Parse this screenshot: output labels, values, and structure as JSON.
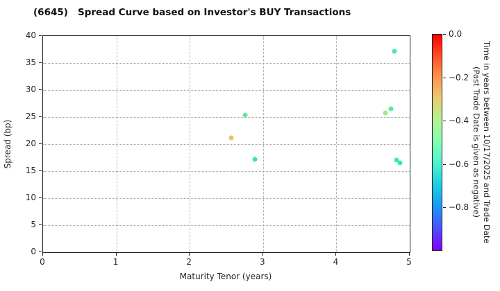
{
  "title": "(6645)   Spread Curve based on Investor's BUY Transactions",
  "chart_data": {
    "type": "scatter",
    "title": "(6645)   Spread Curve based on Investor's BUY Transactions",
    "xlabel": "Maturity Tenor (years)",
    "ylabel": "Spread (bp)",
    "xlim": [
      0,
      5
    ],
    "ylim": [
      0,
      40
    ],
    "x_ticks": [
      0,
      1,
      2,
      3,
      4,
      5
    ],
    "y_ticks": [
      0,
      5,
      10,
      15,
      20,
      25,
      30,
      35,
      40
    ],
    "grid": true,
    "points": [
      {
        "x": 2.57,
        "y": 21.1,
        "time_value": -0.28,
        "color": "#eac36b"
      },
      {
        "x": 2.76,
        "y": 25.4,
        "time_value": -0.5,
        "color": "#68e79c"
      },
      {
        "x": 2.89,
        "y": 17.2,
        "time_value": -0.58,
        "color": "#38dfc9"
      },
      {
        "x": 4.67,
        "y": 25.8,
        "time_value": -0.42,
        "color": "#a3e688"
      },
      {
        "x": 4.74,
        "y": 26.6,
        "time_value": -0.5,
        "color": "#62e79e"
      },
      {
        "x": 4.79,
        "y": 37.2,
        "time_value": -0.51,
        "color": "#55e7a6"
      },
      {
        "x": 4.82,
        "y": 17.0,
        "time_value": -0.55,
        "color": "#46e5b3"
      },
      {
        "x": 4.87,
        "y": 16.5,
        "time_value": -0.57,
        "color": "#3ce2be"
      }
    ],
    "colorbar": {
      "label_line1": "Time in years between 10/17/2025 and Trade Date",
      "label_line2": "(Past Trade Date is given as negative)",
      "range": [
        0,
        -1
      ],
      "tick_values": [
        0,
        -0.2,
        -0.4,
        -0.6,
        -0.8
      ],
      "tick_labels": [
        "0.0",
        "−0.2",
        "−0.4",
        "−0.6",
        "−0.8"
      ],
      "gradient_stops": [
        {
          "pos": 0,
          "color": "#ff0000"
        },
        {
          "pos": 10,
          "color": "#ff4f28"
        },
        {
          "pos": 20,
          "color": "#ff964f"
        },
        {
          "pos": 30,
          "color": "#e6ce74"
        },
        {
          "pos": 40,
          "color": "#b3f396"
        },
        {
          "pos": 50,
          "color": "#80ffb4"
        },
        {
          "pos": 60,
          "color": "#4df3ce"
        },
        {
          "pos": 70,
          "color": "#1acee3"
        },
        {
          "pos": 80,
          "color": "#1a96f3"
        },
        {
          "pos": 90,
          "color": "#4d4ffc"
        },
        {
          "pos": 100,
          "color": "#8000ff"
        }
      ]
    }
  }
}
